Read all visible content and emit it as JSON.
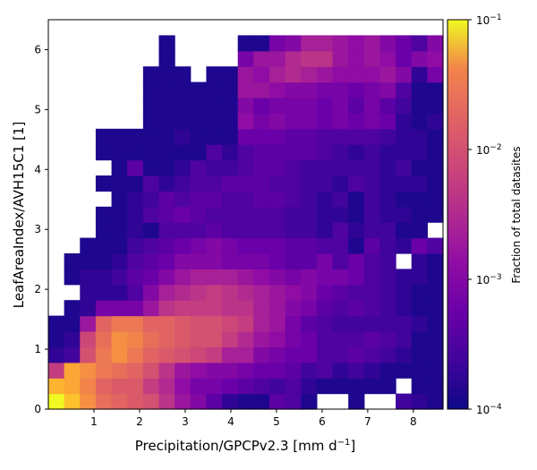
{
  "chart_data": {
    "type": "heatmap",
    "xlabel": "Precipitation/GPCPv2.3 [mm d",
    "xlabel_sup": "−1",
    "xlabel_end": "]",
    "ylabel": "LeafAreaIndex/AVH15C1 [1]",
    "colorbar_label": "Fraction of total datasites",
    "colorbar_scale": "log",
    "colorbar_range": [
      0.0001,
      0.1
    ],
    "colorbar_ticks": [
      {
        "base": "10",
        "exp": "−4",
        "value": 0.0001
      },
      {
        "base": "10",
        "exp": "−3",
        "value": 0.001
      },
      {
        "base": "10",
        "exp": "−2",
        "value": 0.01
      },
      {
        "base": "10",
        "exp": "−1",
        "value": 0.1
      }
    ],
    "colormap": "plasma",
    "xlim": [
      0,
      8.65
    ],
    "ylim": [
      0,
      6.5
    ],
    "xticks": [
      "1",
      "2",
      "3",
      "4",
      "5",
      "6",
      "7",
      "8"
    ],
    "yticks": [
      "0",
      "1",
      "2",
      "3",
      "4",
      "5",
      "6"
    ],
    "x_bins": 25,
    "y_bins": 25,
    "x_bin_width": 0.346,
    "y_bin_width": 0.26,
    "grid": [
      [
        -1.0,
        -1.4,
        -1.8,
        -2.1,
        -2.2,
        -2.3,
        -2.4,
        -2.7,
        -3.0,
        -3.2,
        -3.5,
        -3.8,
        -3.9,
        -3.9,
        -3.5,
        -3.6,
        -3.9,
        null,
        null,
        -3.9,
        null,
        null,
        -3.7,
        -3.8,
        -3.9
      ],
      [
        -1.5,
        -1.6,
        -1.9,
        -2.2,
        -2.3,
        -2.3,
        -2.6,
        -2.8,
        -3.1,
        -3.3,
        -3.3,
        -3.4,
        -3.5,
        -3.6,
        -3.7,
        -3.6,
        -3.8,
        -3.9,
        -3.9,
        -3.9,
        -3.9,
        -3.9,
        null,
        -3.9,
        -3.9
      ],
      [
        -2.6,
        -1.6,
        -1.8,
        -2.0,
        -2.1,
        -2.2,
        -2.4,
        -2.7,
        -3.0,
        -3.1,
        -3.2,
        -3.2,
        -3.3,
        -3.4,
        -3.4,
        -3.5,
        -3.7,
        -3.6,
        -3.8,
        -3.7,
        -3.8,
        -3.9,
        -3.9,
        -3.9,
        -3.9
      ],
      [
        -3.8,
        -3.7,
        -2.4,
        -2.0,
        -1.8,
        -2.0,
        -2.2,
        -2.3,
        -2.4,
        -2.5,
        -2.6,
        -2.9,
        -2.9,
        -3.2,
        -3.3,
        -3.4,
        -3.4,
        -3.6,
        -3.6,
        -3.5,
        -3.6,
        -3.7,
        -3.8,
        -3.9,
        -3.9
      ],
      [
        -3.9,
        -3.8,
        -2.5,
        -2.1,
        -1.8,
        -1.9,
        -2.1,
        -2.2,
        -2.3,
        -2.4,
        -2.4,
        -2.6,
        -2.8,
        -3.0,
        -3.1,
        -3.3,
        -3.4,
        -3.6,
        -3.6,
        -3.6,
        -3.5,
        -3.6,
        -3.7,
        -3.9,
        -3.9
      ],
      [
        -3.9,
        -3.9,
        -3.0,
        -2.2,
        -2.0,
        -2.0,
        -2.2,
        -2.2,
        -2.3,
        -2.4,
        -2.4,
        -2.5,
        -2.6,
        -2.9,
        -3.0,
        -3.3,
        -3.5,
        -3.6,
        -3.7,
        -3.7,
        -3.7,
        -3.7,
        -3.7,
        -3.8,
        -3.9
      ],
      [
        null,
        -3.9,
        -3.8,
        -3.3,
        -3.3,
        -3.3,
        -3.0,
        -2.7,
        -2.6,
        -2.6,
        -2.6,
        -2.7,
        -2.7,
        -2.9,
        -3.0,
        -3.2,
        -3.3,
        -3.5,
        -3.6,
        -3.5,
        -3.6,
        -3.7,
        -3.8,
        -3.9,
        -3.9
      ],
      [
        null,
        null,
        -3.8,
        -3.8,
        -3.8,
        -3.6,
        -3.2,
        -2.9,
        -2.8,
        -2.7,
        -2.6,
        -2.7,
        -2.8,
        -2.9,
        -3.0,
        -3.1,
        -3.2,
        -3.4,
        -3.5,
        -3.6,
        -3.6,
        -3.7,
        -3.8,
        -3.9,
        -3.9
      ],
      [
        null,
        -3.9,
        -3.8,
        -3.8,
        -3.7,
        -3.5,
        -3.4,
        -3.2,
        -3.0,
        -2.9,
        -2.9,
        -2.9,
        -3.0,
        -3.1,
        -3.2,
        -3.3,
        -3.2,
        -3.3,
        -3.3,
        -3.4,
        -3.6,
        -3.7,
        -3.8,
        -3.8,
        -3.9
      ],
      [
        null,
        -3.9,
        -3.9,
        -3.9,
        -3.8,
        -3.6,
        -3.5,
        -3.4,
        -3.2,
        -3.2,
        -3.2,
        -3.3,
        -3.3,
        -3.3,
        -3.4,
        -3.5,
        -3.5,
        -3.3,
        -3.6,
        -3.4,
        -3.6,
        -3.7,
        null,
        -3.8,
        -3.9
      ],
      [
        null,
        null,
        -3.9,
        -3.9,
        -3.9,
        -3.7,
        -3.6,
        -3.5,
        -3.4,
        -3.3,
        -3.2,
        -3.3,
        -3.4,
        -3.4,
        -3.4,
        -3.5,
        -3.5,
        -3.6,
        -3.6,
        -3.9,
        -3.5,
        -3.7,
        -3.8,
        -3.4,
        -3.6
      ],
      [
        null,
        null,
        null,
        -3.9,
        -3.9,
        -3.8,
        -3.9,
        -3.6,
        -3.6,
        -3.6,
        -3.5,
        -3.6,
        -3.6,
        -3.6,
        -3.6,
        -3.7,
        -3.7,
        -3.8,
        -3.6,
        -3.8,
        -3.7,
        -3.7,
        -3.9,
        -3.9,
        null
      ],
      [
        null,
        null,
        null,
        -3.9,
        -3.9,
        -3.8,
        -3.6,
        -3.5,
        -3.4,
        -3.5,
        -3.6,
        -3.6,
        -3.6,
        -3.6,
        -3.6,
        -3.7,
        -3.7,
        -3.8,
        -3.8,
        -3.9,
        -3.7,
        -3.8,
        -3.8,
        -3.9,
        -3.9
      ],
      [
        null,
        null,
        null,
        null,
        -3.9,
        -3.8,
        -3.7,
        -3.5,
        -3.6,
        -3.5,
        -3.5,
        -3.6,
        -3.6,
        -3.5,
        -3.5,
        -3.6,
        -3.7,
        -3.8,
        -3.7,
        -3.9,
        -3.7,
        -3.8,
        -3.9,
        -3.9,
        -3.9
      ],
      [
        null,
        null,
        null,
        -3.9,
        -3.9,
        -3.9,
        -3.6,
        -3.8,
        -3.7,
        -3.6,
        -3.6,
        -3.5,
        -3.5,
        -3.5,
        -3.6,
        -3.6,
        -3.7,
        -3.7,
        -3.8,
        -3.6,
        -3.7,
        -3.8,
        -3.8,
        -3.8,
        -3.9
      ],
      [
        null,
        null,
        null,
        null,
        -3.9,
        -3.5,
        -3.9,
        -3.9,
        -3.8,
        -3.6,
        -3.7,
        -3.7,
        -3.6,
        -3.5,
        -3.5,
        -3.6,
        -3.7,
        -3.7,
        -3.7,
        -3.7,
        -3.7,
        -3.8,
        -3.7,
        -3.9,
        -3.9
      ],
      [
        null,
        null,
        null,
        -3.9,
        -3.9,
        -3.9,
        -3.9,
        -3.9,
        -3.9,
        -3.9,
        -3.6,
        -3.8,
        -3.6,
        -3.5,
        -3.5,
        -3.5,
        -3.5,
        -3.6,
        -3.7,
        -3.8,
        -3.7,
        -3.8,
        -3.8,
        -3.8,
        -3.9
      ],
      [
        null,
        null,
        null,
        -3.9,
        -3.9,
        -3.9,
        -3.9,
        -3.9,
        -3.8,
        -3.9,
        -3.9,
        -3.9,
        -3.4,
        -3.4,
        -3.4,
        -3.5,
        -3.5,
        -3.6,
        -3.6,
        -3.6,
        -3.6,
        -3.7,
        -3.8,
        -3.8,
        -3.9
      ],
      [
        null,
        null,
        null,
        null,
        null,
        null,
        -3.9,
        -3.9,
        -3.9,
        -3.9,
        -3.9,
        -3.9,
        -3.1,
        -3.3,
        -3.2,
        -3.3,
        -3.3,
        -3.4,
        -3.3,
        -3.4,
        -3.3,
        -3.4,
        -3.8,
        -3.9,
        -3.8
      ],
      [
        null,
        null,
        null,
        null,
        null,
        null,
        -3.9,
        -3.9,
        -3.9,
        -3.9,
        -3.9,
        -3.9,
        -3.2,
        -3.4,
        -3.3,
        -3.3,
        -3.3,
        -3.4,
        -3.3,
        -3.5,
        -3.3,
        -3.5,
        -3.7,
        -3.9,
        -3.9
      ],
      [
        null,
        null,
        null,
        null,
        null,
        null,
        -3.9,
        -3.9,
        -3.9,
        -3.9,
        -3.9,
        -3.9,
        -3.0,
        -3.0,
        -3.1,
        -3.2,
        -3.2,
        -3.3,
        -3.3,
        -3.4,
        -3.3,
        -3.2,
        -3.6,
        -3.9,
        -3.9
      ],
      [
        null,
        null,
        null,
        null,
        null,
        null,
        -3.9,
        -3.9,
        -3.9,
        null,
        -3.9,
        -3.9,
        -3.0,
        -3.1,
        -2.9,
        -2.8,
        -2.9,
        -3.0,
        -3.1,
        -3.1,
        -3.1,
        -3.0,
        -3.2,
        -3.8,
        -3.3
      ],
      [
        null,
        null,
        null,
        null,
        null,
        null,
        null,
        -3.9,
        null,
        null,
        null,
        null,
        -3.3,
        -3.0,
        -3.0,
        -2.8,
        -2.7,
        -2.7,
        -3.0,
        -3.1,
        -3.0,
        -3.1,
        -3.4,
        -3.2,
        -3.1
      ],
      [
        null,
        null,
        null,
        null,
        null,
        null,
        null,
        -3.9,
        null,
        null,
        null,
        null,
        -3.9,
        -3.9,
        -3.3,
        -3.2,
        -2.9,
        -2.9,
        -3.0,
        -3.1,
        -3.0,
        -3.2,
        -3.4,
        -3.6,
        -3.2
      ],
      [
        null,
        null,
        null,
        null,
        null,
        null,
        null,
        null,
        null,
        null,
        null,
        null,
        null,
        null,
        null,
        null,
        null,
        null,
        null,
        null,
        null,
        null,
        null,
        null,
        null
      ]
    ]
  }
}
